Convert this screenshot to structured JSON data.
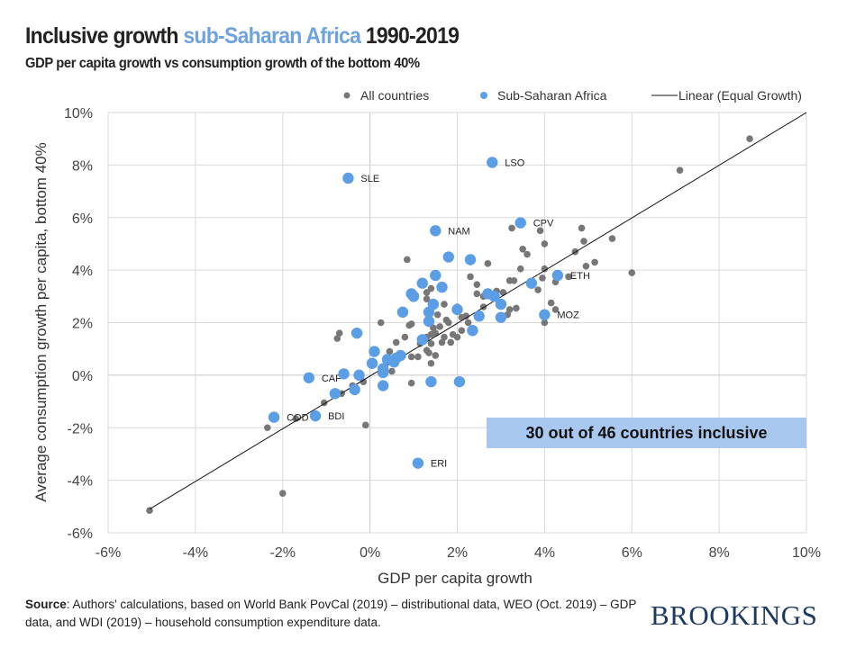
{
  "title": {
    "part1": "Inclusive growth ",
    "highlight": "sub-Saharan Africa",
    "part2": " 1990-2019"
  },
  "subtitle": "GDP per capita growth vs consumption growth of the bottom 40%",
  "source": {
    "label": "Source",
    "text": ": Authors' calculations, based on World Bank PovCal (2019) – distributional data, WEO (Oct. 2019) – GDP data, and WDI (2019) – household consumption expenditure data."
  },
  "logo": "BROOKINGS",
  "callout": "30 out of 46 countries inclusive",
  "colors": {
    "all": "#777777",
    "ssa": "#5b9ee6",
    "callout": "#a9c8ef",
    "highlight": "#6fa3e0"
  },
  "chart_data": {
    "type": "scatter",
    "title": "Inclusive growth sub-Saharan Africa 1990-2019",
    "xlabel": "GDP per capita growth",
    "ylabel": "Average consumption growth per capita, bottom 40%",
    "xlim": [
      -6,
      10
    ],
    "ylim": [
      -6,
      10
    ],
    "xticks": [
      "-6%",
      "-4%",
      "-2%",
      "0%",
      "2%",
      "4%",
      "6%",
      "8%",
      "10%"
    ],
    "yticks": [
      "10%",
      "8%",
      "6%",
      "4%",
      "2%",
      "0%",
      "-2%",
      "-4%",
      "-6%"
    ],
    "grid": true,
    "legend": {
      "placement": "top",
      "entries": [
        "All countries",
        "Sub-Saharan Africa",
        "Linear (Equal Growth)"
      ]
    },
    "series": [
      {
        "name": "All countries",
        "points": [
          [
            8.7,
            9.0
          ],
          [
            7.1,
            7.8
          ],
          [
            5.55,
            5.2
          ],
          [
            4.85,
            5.6
          ],
          [
            4.9,
            5.1
          ],
          [
            4.7,
            4.7
          ],
          [
            4.95,
            4.15
          ],
          [
            5.15,
            4.3
          ],
          [
            6.0,
            3.9
          ],
          [
            3.9,
            5.5
          ],
          [
            4.0,
            5.0
          ],
          [
            3.25,
            5.6
          ],
          [
            3.5,
            4.8
          ],
          [
            3.6,
            4.6
          ],
          [
            2.7,
            4.25
          ],
          [
            0.85,
            4.4
          ],
          [
            3.45,
            4.05
          ],
          [
            4.0,
            4.05
          ],
          [
            3.95,
            3.7
          ],
          [
            4.25,
            3.55
          ],
          [
            4.55,
            3.75
          ],
          [
            2.3,
            3.75
          ],
          [
            2.45,
            3.45
          ],
          [
            3.2,
            3.6
          ],
          [
            3.3,
            3.6
          ],
          [
            2.9,
            3.2
          ],
          [
            3.05,
            3.15
          ],
          [
            3.85,
            3.25
          ],
          [
            4.15,
            2.75
          ],
          [
            4.25,
            2.5
          ],
          [
            4.0,
            2.0
          ],
          [
            1.3,
            3.15
          ],
          [
            1.4,
            3.3
          ],
          [
            1.3,
            2.9
          ],
          [
            1.7,
            2.7
          ],
          [
            2.45,
            3.1
          ],
          [
            2.6,
            3.0
          ],
          [
            2.0,
            2.6
          ],
          [
            2.6,
            2.6
          ],
          [
            3.2,
            2.5
          ],
          [
            3.15,
            2.3
          ],
          [
            3.35,
            2.55
          ],
          [
            0.25,
            2.0
          ],
          [
            0.9,
            1.9
          ],
          [
            0.95,
            1.95
          ],
          [
            1.55,
            2.3
          ],
          [
            1.45,
            1.8
          ],
          [
            1.6,
            1.85
          ],
          [
            1.75,
            2.1
          ],
          [
            1.8,
            2.0
          ],
          [
            1.5,
            1.6
          ],
          [
            1.4,
            1.55
          ],
          [
            1.7,
            1.45
          ],
          [
            1.9,
            1.55
          ],
          [
            2.2,
            2.25
          ],
          [
            2.25,
            2.0
          ],
          [
            2.1,
            2.2
          ],
          [
            2.1,
            1.7
          ],
          [
            2.0,
            1.45
          ],
          [
            -0.7,
            1.6
          ],
          [
            -0.75,
            1.4
          ],
          [
            0.8,
            1.45
          ],
          [
            0.6,
            1.25
          ],
          [
            1.15,
            1.2
          ],
          [
            1.3,
            1.45
          ],
          [
            1.65,
            1.25
          ],
          [
            1.3,
            0.95
          ],
          [
            1.35,
            0.85
          ],
          [
            1.4,
            1.2
          ],
          [
            1.1,
            0.7
          ],
          [
            1.85,
            1.25
          ],
          [
            0.45,
            0.9
          ],
          [
            0.95,
            0.7
          ],
          [
            0.5,
            0.15
          ],
          [
            1.5,
            0.75
          ],
          [
            1.4,
            0.45
          ],
          [
            0.95,
            -0.3
          ],
          [
            -0.15,
            -0.25
          ],
          [
            -0.65,
            -0.7
          ],
          [
            -1.05,
            -1.05
          ],
          [
            -0.4,
            -0.4
          ],
          [
            -1.7,
            -1.65
          ],
          [
            -2.35,
            -2.0
          ],
          [
            -2.0,
            -4.5
          ],
          [
            -0.1,
            -1.9
          ],
          [
            -5.05,
            -5.15
          ],
          [
            -0.4,
            -0.55
          ]
        ]
      },
      {
        "name": "Sub-Saharan Africa",
        "points": [
          [
            -0.5,
            7.5,
            "SLE"
          ],
          [
            2.8,
            8.1,
            "LSO"
          ],
          [
            3.45,
            5.8,
            "CPV"
          ],
          [
            1.5,
            5.5,
            "NAM"
          ],
          [
            4.3,
            3.8,
            "ETH"
          ],
          [
            4.0,
            2.3,
            "MOZ"
          ],
          [
            -1.4,
            -0.1,
            "CAF"
          ],
          [
            -2.2,
            -1.6,
            "COD"
          ],
          [
            -1.25,
            -1.55,
            "BDI"
          ],
          [
            1.1,
            -3.35,
            "ERI"
          ],
          [
            1.8,
            4.5
          ],
          [
            2.3,
            4.4
          ],
          [
            1.5,
            3.8
          ],
          [
            1.2,
            3.5
          ],
          [
            1.65,
            3.35
          ],
          [
            0.95,
            3.1
          ],
          [
            1.45,
            2.7
          ],
          [
            1.35,
            2.4
          ],
          [
            0.75,
            2.4
          ],
          [
            2.0,
            2.5
          ],
          [
            2.7,
            3.1
          ],
          [
            2.85,
            3.0
          ],
          [
            3.0,
            2.7
          ],
          [
            3.0,
            2.2
          ],
          [
            2.5,
            2.25
          ],
          [
            3.7,
            3.5
          ],
          [
            -0.3,
            1.6
          ],
          [
            1.35,
            2.05
          ],
          [
            1.2,
            1.35
          ],
          [
            0.1,
            0.9
          ],
          [
            0.05,
            0.45
          ],
          [
            0.4,
            0.6
          ],
          [
            0.6,
            0.65
          ],
          [
            0.7,
            0.75
          ],
          [
            0.3,
            0.25
          ],
          [
            0.3,
            0.1
          ],
          [
            -0.6,
            0.05
          ],
          [
            -0.25,
            0.0
          ],
          [
            0.3,
            -0.4
          ],
          [
            1.4,
            -0.25
          ],
          [
            2.05,
            -0.25
          ],
          [
            -0.8,
            -0.7
          ],
          [
            -0.35,
            -0.55
          ],
          [
            2.35,
            1.7
          ],
          [
            0.55,
            0.5
          ],
          [
            1.0,
            3.0
          ]
        ]
      },
      {
        "name": "Linear (Equal Growth)",
        "line": [
          [
            -5.05,
            -5.1
          ],
          [
            10,
            10
          ]
        ]
      }
    ]
  }
}
